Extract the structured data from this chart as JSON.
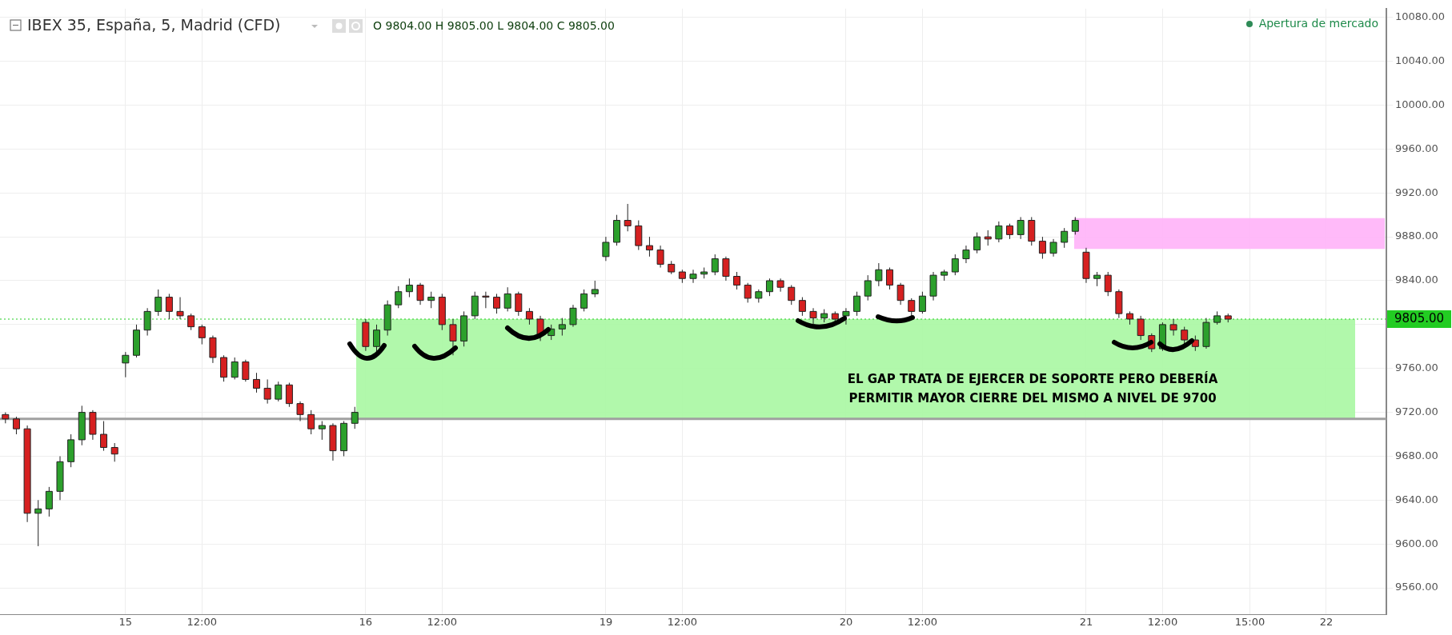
{
  "chart_data": {
    "type": "candlestick",
    "title": "IBEX 35, España, 5, Madrid (CFD)",
    "subtitle": "O 9804.00 H 9805.00 L 9804.00 C 9805.00",
    "annotations": [
      "Apertura de mercado",
      "EL GAP TRATA DE EJERCER DE SOPORTE PERO DEBERÍA PERMITIR MAYOR CIERRE DEL MISMO A NIVEL DE 9700"
    ],
    "categories": [
      null,
      null,
      null,
      null,
      null,
      null,
      null,
      null,
      null,
      null,
      null,
      "15",
      null,
      null,
      null,
      null,
      null,
      null,
      "12:00",
      null,
      null,
      null,
      null,
      null,
      null,
      null,
      null,
      null,
      null,
      null,
      null,
      null,
      null,
      "16",
      null,
      null,
      null,
      null,
      null,
      null,
      "12:00",
      null,
      null,
      null,
      null,
      null,
      null,
      null,
      null,
      null,
      null,
      null,
      null,
      null,
      null,
      "19",
      null,
      null,
      null,
      null,
      null,
      null,
      "12:00",
      null,
      null,
      null,
      null,
      null,
      null,
      null,
      null,
      null,
      null,
      null,
      null,
      null,
      null,
      "20",
      null,
      null,
      null,
      null,
      null,
      null,
      "12:00",
      null,
      null,
      null,
      null,
      null,
      null,
      null,
      null,
      null,
      null,
      null,
      null,
      null,
      null,
      "21",
      null,
      null,
      null,
      null,
      null,
      null,
      "12:00",
      null,
      null,
      null,
      null,
      null,
      null,
      null,
      "15:00",
      null,
      null,
      null,
      null,
      null,
      null,
      "22",
      null,
      null,
      null,
      null,
      null
    ],
    "ohlc": [
      [
        9718,
        9720,
        9710,
        9714
      ],
      [
        9714,
        9716,
        9700,
        9705
      ],
      [
        9705,
        9708,
        9620,
        9628
      ],
      [
        9628,
        9640,
        9598,
        9632
      ],
      [
        9632,
        9652,
        9625,
        9648
      ],
      [
        9648,
        9680,
        9640,
        9675
      ],
      [
        9675,
        9700,
        9670,
        9695
      ],
      [
        9695,
        9726,
        9690,
        9720
      ],
      [
        9720,
        9722,
        9695,
        9700
      ],
      [
        9700,
        9712,
        9685,
        9688
      ],
      [
        9688,
        9692,
        9675,
        9682
      ],
      [
        9765,
        9775,
        9752,
        9772
      ],
      [
        9772,
        9800,
        9770,
        9795
      ],
      [
        9795,
        9815,
        9790,
        9812
      ],
      [
        9812,
        9832,
        9808,
        9825
      ],
      [
        9825,
        9828,
        9805,
        9812
      ],
      [
        9812,
        9825,
        9805,
        9808
      ],
      [
        9808,
        9810,
        9795,
        9798
      ],
      [
        9798,
        9800,
        9782,
        9788
      ],
      [
        9788,
        9790,
        9765,
        9770
      ],
      [
        9770,
        9772,
        9748,
        9752
      ],
      [
        9752,
        9770,
        9750,
        9766
      ],
      [
        9766,
        9768,
        9748,
        9750
      ],
      [
        9750,
        9756,
        9738,
        9742
      ],
      [
        9742,
        9750,
        9728,
        9732
      ],
      [
        9732,
        9748,
        9730,
        9745
      ],
      [
        9745,
        9747,
        9725,
        9728
      ],
      [
        9728,
        9730,
        9712,
        9718
      ],
      [
        9718,
        9722,
        9700,
        9705
      ],
      [
        9705,
        9712,
        9695,
        9708
      ],
      [
        9708,
        9710,
        9676,
        9685
      ],
      [
        9685,
        9712,
        9680,
        9710
      ],
      [
        9710,
        9725,
        9705,
        9720
      ],
      [
        9802,
        9805,
        9776,
        9780
      ],
      [
        9780,
        9800,
        9775,
        9795
      ],
      [
        9795,
        9822,
        9790,
        9818
      ],
      [
        9818,
        9835,
        9815,
        9830
      ],
      [
        9830,
        9842,
        9825,
        9836
      ],
      [
        9836,
        9838,
        9818,
        9822
      ],
      [
        9822,
        9830,
        9815,
        9825
      ],
      [
        9825,
        9828,
        9795,
        9800
      ],
      [
        9800,
        9805,
        9772,
        9785
      ],
      [
        9785,
        9812,
        9780,
        9808
      ],
      [
        9808,
        9830,
        9805,
        9826
      ],
      [
        9826,
        9830,
        9815,
        9825
      ],
      [
        9825,
        9828,
        9810,
        9815
      ],
      [
        9815,
        9834,
        9812,
        9828
      ],
      [
        9828,
        9830,
        9808,
        9812
      ],
      [
        9812,
        9815,
        9800,
        9805
      ],
      [
        9805,
        9808,
        9785,
        9790
      ],
      [
        9790,
        9800,
        9786,
        9796
      ],
      [
        9796,
        9806,
        9790,
        9800
      ],
      [
        9800,
        9818,
        9798,
        9815
      ],
      [
        9815,
        9832,
        9812,
        9828
      ],
      [
        9828,
        9840,
        9825,
        9832
      ],
      [
        9862,
        9880,
        9858,
        9875
      ],
      [
        9875,
        9900,
        9872,
        9895
      ],
      [
        9895,
        9910,
        9885,
        9890
      ],
      [
        9890,
        9895,
        9868,
        9872
      ],
      [
        9872,
        9880,
        9862,
        9868
      ],
      [
        9868,
        9872,
        9852,
        9855
      ],
      [
        9855,
        9858,
        9846,
        9848
      ],
      [
        9848,
        9850,
        9838,
        9842
      ],
      [
        9842,
        9850,
        9838,
        9846
      ],
      [
        9846,
        9852,
        9842,
        9848
      ],
      [
        9848,
        9864,
        9845,
        9860
      ],
      [
        9860,
        9862,
        9840,
        9844
      ],
      [
        9844,
        9848,
        9832,
        9836
      ],
      [
        9836,
        9838,
        9820,
        9824
      ],
      [
        9824,
        9832,
        9820,
        9830
      ],
      [
        9830,
        9842,
        9826,
        9840
      ],
      [
        9840,
        9842,
        9830,
        9834
      ],
      [
        9834,
        9836,
        9818,
        9822
      ],
      [
        9822,
        9825,
        9808,
        9812
      ],
      [
        9812,
        9815,
        9800,
        9806
      ],
      [
        9806,
        9814,
        9802,
        9810
      ],
      [
        9810,
        9812,
        9800,
        9805
      ],
      [
        9808,
        9815,
        9800,
        9812
      ],
      [
        9812,
        9830,
        9808,
        9826
      ],
      [
        9826,
        9845,
        9822,
        9840
      ],
      [
        9840,
        9856,
        9835,
        9850
      ],
      [
        9850,
        9852,
        9832,
        9836
      ],
      [
        9836,
        9838,
        9818,
        9822
      ],
      [
        9822,
        9824,
        9806,
        9812
      ],
      [
        9812,
        9830,
        9810,
        9826
      ],
      [
        9826,
        9848,
        9822,
        9845
      ],
      [
        9845,
        9850,
        9840,
        9848
      ],
      [
        9848,
        9864,
        9845,
        9860
      ],
      [
        9860,
        9872,
        9856,
        9868
      ],
      [
        9868,
        9884,
        9865,
        9880
      ],
      [
        9880,
        9886,
        9872,
        9878
      ],
      [
        9878,
        9894,
        9875,
        9890
      ],
      [
        9890,
        9892,
        9878,
        9882
      ],
      [
        9882,
        9898,
        9878,
        9895
      ],
      [
        9895,
        9898,
        9872,
        9876
      ],
      [
        9876,
        9880,
        9860,
        9865
      ],
      [
        9865,
        9878,
        9862,
        9875
      ],
      [
        9875,
        9888,
        9870,
        9885
      ],
      [
        9885,
        9898,
        9882,
        9895
      ],
      [
        9866,
        9870,
        9838,
        9842
      ],
      [
        9842,
        9848,
        9835,
        9845
      ],
      [
        9845,
        9848,
        9826,
        9830
      ],
      [
        9830,
        9832,
        9806,
        9810
      ],
      [
        9810,
        9812,
        9800,
        9805
      ],
      [
        9805,
        9808,
        9786,
        9790
      ],
      [
        9790,
        9792,
        9775,
        9778
      ],
      [
        9778,
        9802,
        9776,
        9800
      ],
      [
        9800,
        9805,
        9790,
        9795
      ],
      [
        9795,
        9798,
        9782,
        9786
      ],
      [
        9786,
        9790,
        9776,
        9780
      ],
      [
        9780,
        9806,
        9778,
        9802
      ],
      [
        9802,
        9812,
        9800,
        9808
      ],
      [
        9808,
        9810,
        9802,
        9805
      ],
      null,
      null,
      null,
      null,
      null,
      null,
      null,
      null,
      null,
      null,
      null,
      null,
      null,
      null
    ],
    "ylim": [
      9536,
      10088
    ],
    "yticks": [
      {
        "value": 9560,
        "label": "9560.00"
      },
      {
        "value": 9600,
        "label": "9600.00"
      },
      {
        "value": 9640,
        "label": "9640.00"
      },
      {
        "value": 9680,
        "label": "9680.00"
      },
      {
        "value": 9720,
        "label": "9720.00"
      },
      {
        "value": 9760,
        "label": "9760.00"
      },
      {
        "value": 9800,
        "label": null
      },
      {
        "value": 9840,
        "label": "9840.00"
      },
      {
        "value": 9880,
        "label": "9880.00"
      },
      {
        "value": 9920,
        "label": "9920.00"
      },
      {
        "value": 9960,
        "label": "9960.00"
      },
      {
        "value": 10000,
        "label": "10000.00"
      },
      {
        "value": 10040,
        "label": "10040.00"
      },
      {
        "value": 10080,
        "label": "10080.00"
      }
    ],
    "bands": [
      {
        "axis": "y",
        "from": 9714,
        "to": 9805,
        "color": "#a8f7a2"
      },
      {
        "axis": "y",
        "from": 9869,
        "to": 9897,
        "color": "#ffb3f8"
      }
    ],
    "ref_lines": [
      {
        "axis": "y",
        "value": 9805,
        "label": "9805.00",
        "color": "#22cc22",
        "line_style": "dotted"
      },
      {
        "axis": "y",
        "value": 9714,
        "color": "#a0a0a0",
        "line_style": "solid"
      }
    ],
    "grid": true,
    "legend": false
  }
}
